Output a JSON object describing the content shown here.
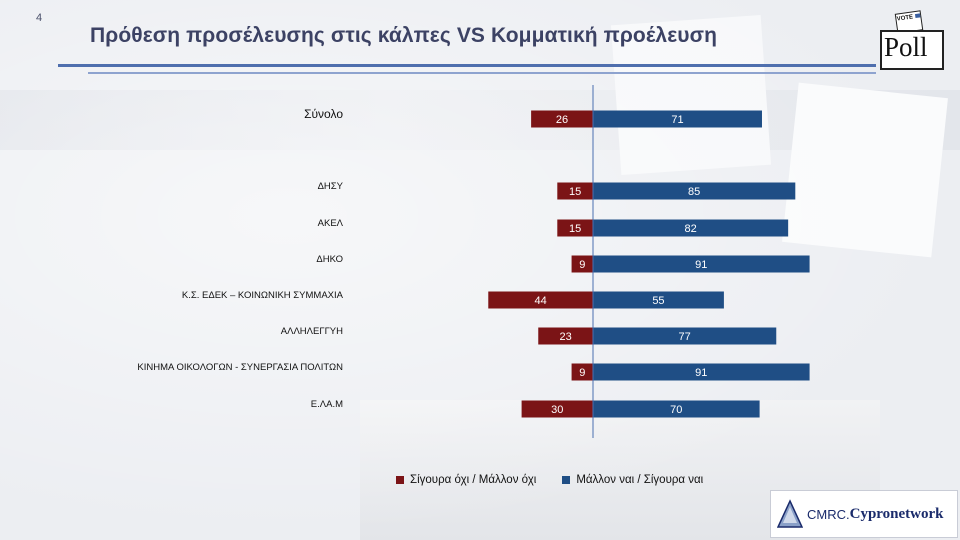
{
  "page_number": "4",
  "title": "Πρόθεση προσέλευσης στις κάλπες VS Κομματική προέλευση",
  "poll_logo": {
    "word": "Poll",
    "ballot_text": "VOTE"
  },
  "brand_logo": {
    "prefix": "CMRC.",
    "name": "Cypronetwork"
  },
  "colors": {
    "negative": "#7b1416",
    "positive": "#1f4e85",
    "axis": "#4a6fb0"
  },
  "chart_data": {
    "type": "bar",
    "orientation": "horizontal-diverging",
    "title": "Πρόθεση προσέλευσης στις κάλπες VS Κομματική προέλευση",
    "categories": [
      "Σύνολο",
      "ΔΗΣΥ",
      "ΑΚΕΛ",
      "ΔΗΚΟ",
      "Κ.Σ. ΕΔΕΚ – ΚΟΙΝΩΝΙΚΗ ΣΥΜΜΑΧΙΑ",
      "ΑΛΛΗΛΕΓΓΥΗ",
      "ΚΙΝΗΜΑ ΟΙΚΟΛΟΓΩΝ - ΣΥΝΕΡΓΑΣΙΑ ΠΟΛΙΤΩΝ",
      "Ε.ΛΑ.Μ"
    ],
    "series": [
      {
        "name": "Σίγουρα όχι / Μάλλον όχι",
        "direction": "left",
        "values": [
          26,
          15,
          15,
          9,
          44,
          23,
          9,
          30
        ]
      },
      {
        "name": "Μάλλον ναι / Σίγουρα ναι",
        "direction": "right",
        "values": [
          71,
          85,
          82,
          91,
          55,
          77,
          91,
          70
        ]
      }
    ],
    "xlim": [
      -50,
      100
    ],
    "legend": "bottom"
  }
}
